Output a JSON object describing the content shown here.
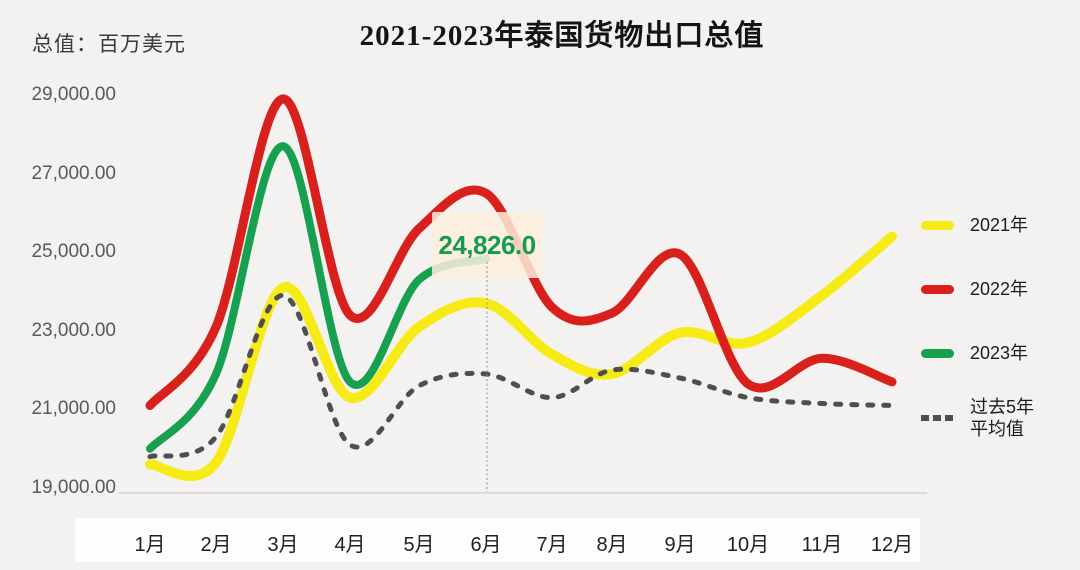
{
  "title": "2021-2023年泰国货物出口总值",
  "unit_label": "总值：百万美元",
  "chart_data": {
    "type": "line",
    "title": "2021-2023年泰国货物出口总值",
    "ylabel": "总值：百万美元",
    "categories": [
      "1月",
      "2月",
      "3月",
      "4月",
      "5月",
      "6月",
      "7月",
      "8月",
      "9月",
      "10月",
      "11月",
      "12月"
    ],
    "ylim": [
      19000,
      29000
    ],
    "ytick_labels": [
      "29,000.00",
      "27,000.00",
      "25,000.00",
      "23,000.00",
      "21,000.00",
      "19,000.00"
    ],
    "grid": false,
    "legend_position": "right",
    "series": [
      {
        "id": "y2021",
        "name": "2021年",
        "color": "#f6eb15",
        "style": "solid",
        "values": [
          19600,
          19650,
          24100,
          21300,
          23100,
          23700,
          22400,
          21900,
          22950,
          22700,
          23900,
          25400
        ]
      },
      {
        "id": "y2022",
        "name": "2022年",
        "color": "#d8201c",
        "style": "solid",
        "values": [
          21100,
          23100,
          28900,
          23400,
          25600,
          26500,
          23600,
          23450,
          24950,
          21650,
          22300,
          21700
        ]
      },
      {
        "id": "y2023",
        "name": "2023年",
        "color": "#16a050",
        "style": "solid",
        "values": [
          20000,
          21900,
          27700,
          21700,
          24300,
          24826
        ]
      },
      {
        "id": "avg5",
        "name": "过去5年平均值",
        "name_line1": "过去5年",
        "name_line2": "平均值",
        "color": "#4f4f4f",
        "style": "dashed",
        "values": [
          19800,
          20300,
          23900,
          20100,
          21600,
          21900,
          21300,
          22000,
          21800,
          21300,
          21150,
          21100
        ]
      }
    ],
    "annotation": {
      "text": "24,826.0",
      "value": 24826,
      "month_index": 5,
      "series": "2023年",
      "text_color": "#179a4c",
      "highlight_color": "#fbeedd"
    }
  }
}
